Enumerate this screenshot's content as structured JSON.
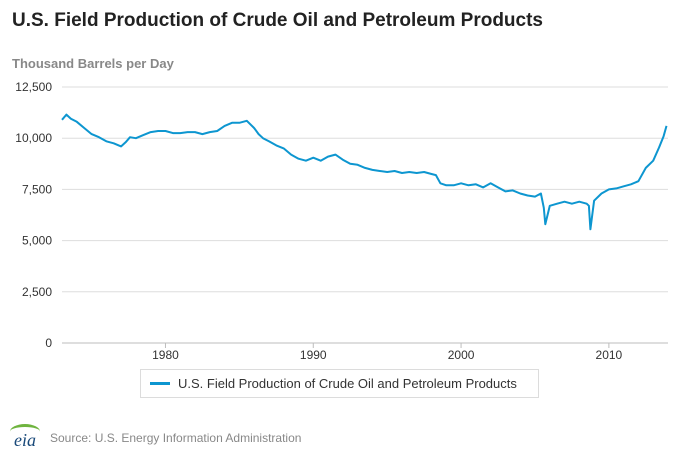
{
  "header": {
    "title": "U.S. Field Production of Crude Oil and Petroleum Products",
    "unit": "Thousand Barrels per Day"
  },
  "footer": {
    "logo_text": "eia",
    "source": "Source: U.S. Energy Information Administration"
  },
  "colors": {
    "series": "#0d96d0",
    "grid": "#dddddd",
    "axis_text": "#333333"
  },
  "chart_data": {
    "type": "line",
    "title": "U.S. Field Production of Crude Oil and Petroleum Products",
    "ylabel": "Thousand Barrels per Day",
    "xlabel": "",
    "xlim": [
      1973.0,
      2014.0
    ],
    "ylim": [
      0,
      12500
    ],
    "x_ticks": [
      1980,
      1990,
      2000,
      2010
    ],
    "y_ticks": [
      0,
      2500,
      5000,
      7500,
      10000,
      12500
    ],
    "x_tick_labels": [
      "1980",
      "1990",
      "2000",
      "2010"
    ],
    "y_tick_labels": [
      "0",
      "2,500",
      "5,000",
      "7,500",
      "10,000",
      "12,500"
    ],
    "grid": "horizontal",
    "legend_position": "bottom",
    "series": [
      {
        "name": "U.S. Field Production of Crude Oil and Petroleum Products",
        "x": [
          1973.0,
          1973.3,
          1973.6,
          1974.0,
          1974.5,
          1975.0,
          1975.5,
          1976.0,
          1976.5,
          1977.0,
          1977.3,
          1977.6,
          1978.0,
          1978.5,
          1979.0,
          1979.5,
          1980.0,
          1980.5,
          1981.0,
          1981.5,
          1982.0,
          1982.5,
          1983.0,
          1983.5,
          1984.0,
          1984.5,
          1985.0,
          1985.5,
          1986.0,
          1986.3,
          1986.6,
          1987.0,
          1987.5,
          1988.0,
          1988.5,
          1989.0,
          1989.5,
          1990.0,
          1990.5,
          1991.0,
          1991.5,
          1992.0,
          1992.5,
          1993.0,
          1993.5,
          1994.0,
          1994.5,
          1995.0,
          1995.5,
          1996.0,
          1996.5,
          1997.0,
          1997.5,
          1998.0,
          1998.3,
          1998.6,
          1999.0,
          1999.5,
          2000.0,
          2000.5,
          2001.0,
          2001.5,
          2002.0,
          2002.5,
          2003.0,
          2003.5,
          2004.0,
          2004.5,
          2005.0,
          2005.4,
          2005.6,
          2005.7,
          2006.0,
          2006.5,
          2007.0,
          2007.5,
          2008.0,
          2008.5,
          2008.65,
          2008.75,
          2009.0,
          2009.5,
          2010.0,
          2010.5,
          2011.0,
          2011.5,
          2012.0,
          2012.5,
          2013.0,
          2013.4,
          2013.7,
          2013.9
        ],
        "y": [
          10900,
          11150,
          10950,
          10800,
          10500,
          10200,
          10050,
          9850,
          9750,
          9600,
          9800,
          10050,
          10000,
          10150,
          10300,
          10350,
          10350,
          10250,
          10250,
          10300,
          10300,
          10200,
          10300,
          10350,
          10600,
          10750,
          10750,
          10850,
          10500,
          10200,
          10000,
          9850,
          9650,
          9500,
          9200,
          9000,
          8900,
          9050,
          8900,
          9100,
          9200,
          8950,
          8750,
          8700,
          8550,
          8450,
          8400,
          8350,
          8400,
          8300,
          8350,
          8300,
          8350,
          8250,
          8200,
          7800,
          7700,
          7700,
          7800,
          7700,
          7750,
          7600,
          7800,
          7600,
          7400,
          7450,
          7300,
          7200,
          7150,
          7300,
          6600,
          5800,
          6700,
          6800,
          6900,
          6800,
          6900,
          6800,
          6700,
          5550,
          6950,
          7300,
          7500,
          7550,
          7650,
          7750,
          7900,
          8550,
          8900,
          9550,
          10100,
          10600
        ]
      }
    ]
  }
}
